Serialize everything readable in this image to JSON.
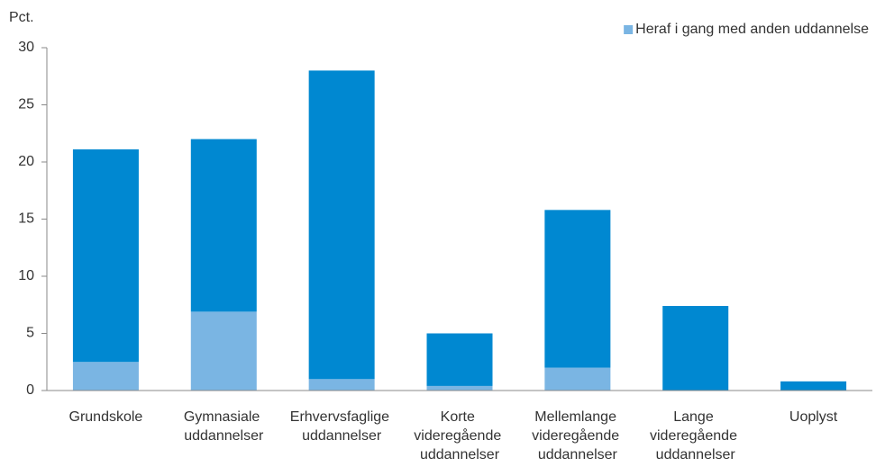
{
  "chart_data": {
    "type": "bar",
    "stacked": true,
    "y_label": "Pct.",
    "categories": [
      "Grundskole",
      "Gymnasiale uddannelser",
      "Erhvervsfaglige uddannelser",
      "Korte videregående uddannelser",
      "Mellemlange videregående uddannelser",
      "Lange videregående uddannelser",
      "Uoplyst"
    ],
    "series": [
      {
        "name": "Heraf i gang med anden uddannelse",
        "color": "#7ab5e3",
        "values": [
          2.5,
          6.9,
          1.0,
          0.4,
          2.0,
          0.0,
          0.0
        ]
      },
      {
        "color": "#0088d1",
        "values": [
          18.6,
          15.1,
          27.0,
          4.6,
          13.8,
          7.4,
          0.8
        ]
      }
    ],
    "ylim": [
      0,
      30
    ],
    "yticks": [
      0,
      5,
      10,
      15,
      20,
      25,
      30
    ],
    "grid": false,
    "legend": "top-right"
  }
}
